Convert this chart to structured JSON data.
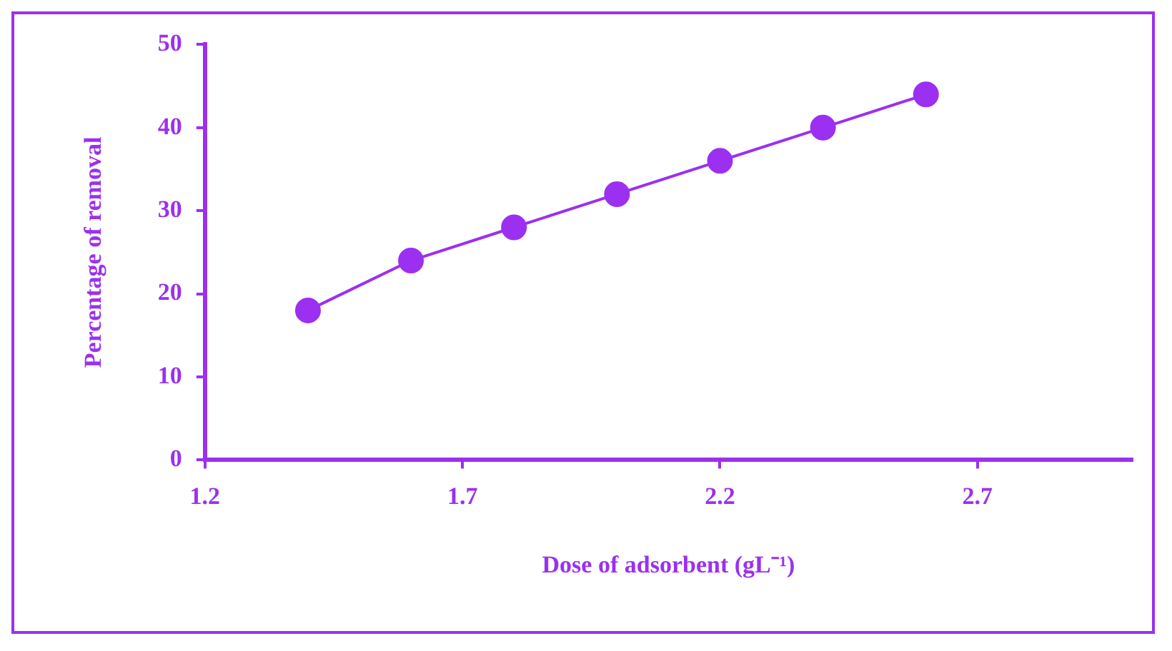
{
  "chart_data": {
    "type": "line",
    "xlabel": "Dose of adsorbent (gL⁻¹)",
    "ylabel": "Percentage of removal",
    "x": [
      1.4,
      1.6,
      1.8,
      2.0,
      2.2,
      2.4,
      2.6
    ],
    "series": [
      {
        "color": "#9b30f0",
        "values": [
          18,
          24,
          28,
          32,
          36,
          40,
          44
        ]
      }
    ],
    "xlim": [
      1.2,
      3.0
    ],
    "xticks": [
      1.2,
      1.7,
      2.2,
      2.7
    ],
    "ylim": [
      0,
      50
    ],
    "yticks": [
      0,
      10,
      20,
      30,
      40,
      50
    ],
    "grid": false,
    "legend": false,
    "marker": "circle",
    "line_style": "solid"
  }
}
